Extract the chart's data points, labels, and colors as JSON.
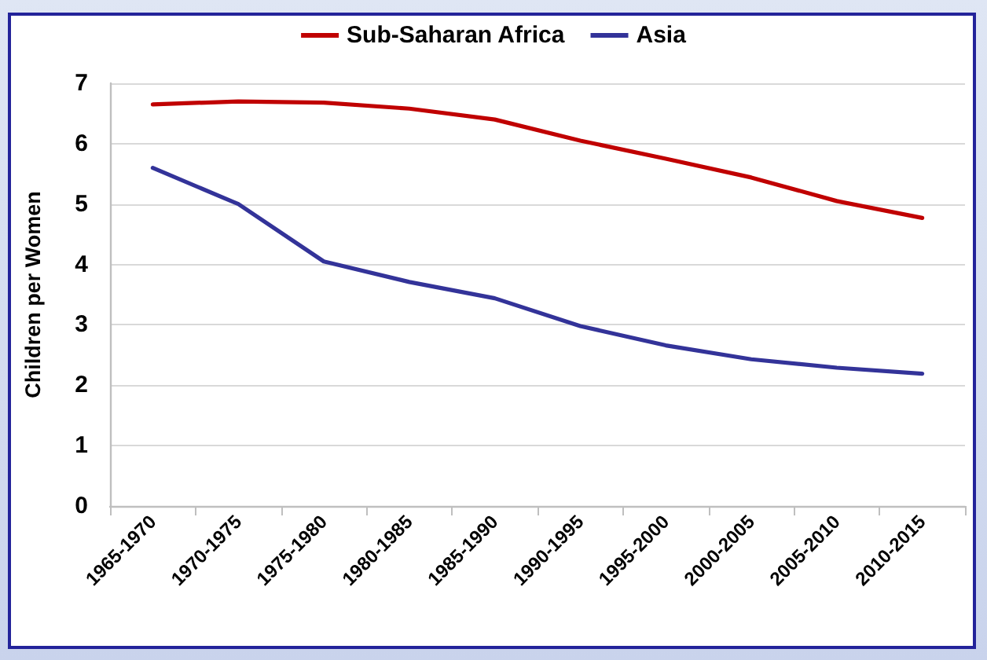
{
  "chart_data": {
    "type": "line",
    "ylabel": "Children per Women",
    "categories": [
      "1965-1970",
      "1970-1975",
      "1975-1980",
      "1980-1985",
      "1985-1990",
      "1990-1995",
      "1995-2000",
      "2000-2005",
      "2005-2010",
      "2010-2015"
    ],
    "series": [
      {
        "name": "Sub-Saharan Africa",
        "color": "#c00000",
        "values": [
          6.65,
          6.7,
          6.68,
          6.58,
          6.4,
          6.05,
          5.75,
          5.44,
          5.05,
          4.77
        ]
      },
      {
        "name": "Asia",
        "color": "#333399",
        "values": [
          5.6,
          5.0,
          4.05,
          3.71,
          3.44,
          2.98,
          2.66,
          2.43,
          2.29,
          2.19
        ]
      }
    ],
    "ylim": [
      0,
      7
    ],
    "yticks": [
      0,
      1,
      2,
      3,
      4,
      5,
      6,
      7
    ],
    "grid": "y",
    "legend": "top",
    "marker": "none"
  }
}
